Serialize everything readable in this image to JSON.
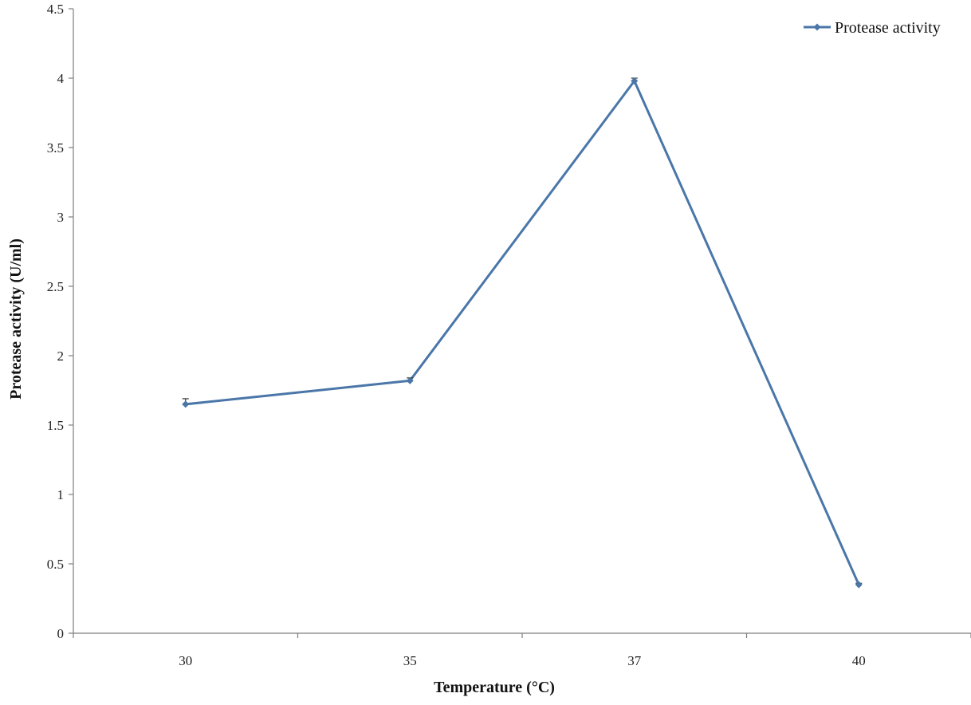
{
  "chart_data": {
    "type": "line",
    "categories": [
      "30",
      "35",
      "37",
      "40"
    ],
    "series": [
      {
        "name": "Protease activity",
        "values": [
          1.65,
          1.82,
          3.98,
          0.35
        ],
        "errors": [
          0.04,
          0.02,
          0.02,
          0.01
        ],
        "color": "#4a76a8",
        "marker": "diamond"
      }
    ],
    "xlabel": "Temperature (°C)",
    "ylabel": "Protease activity (U/ml)",
    "ylim": [
      0,
      4.5
    ],
    "yticks": [
      "0",
      "0.5",
      "1",
      "1.5",
      "2",
      "2.5",
      "3",
      "3.5",
      "4",
      "4.5"
    ],
    "grid": false,
    "legend_position": "top-right"
  }
}
